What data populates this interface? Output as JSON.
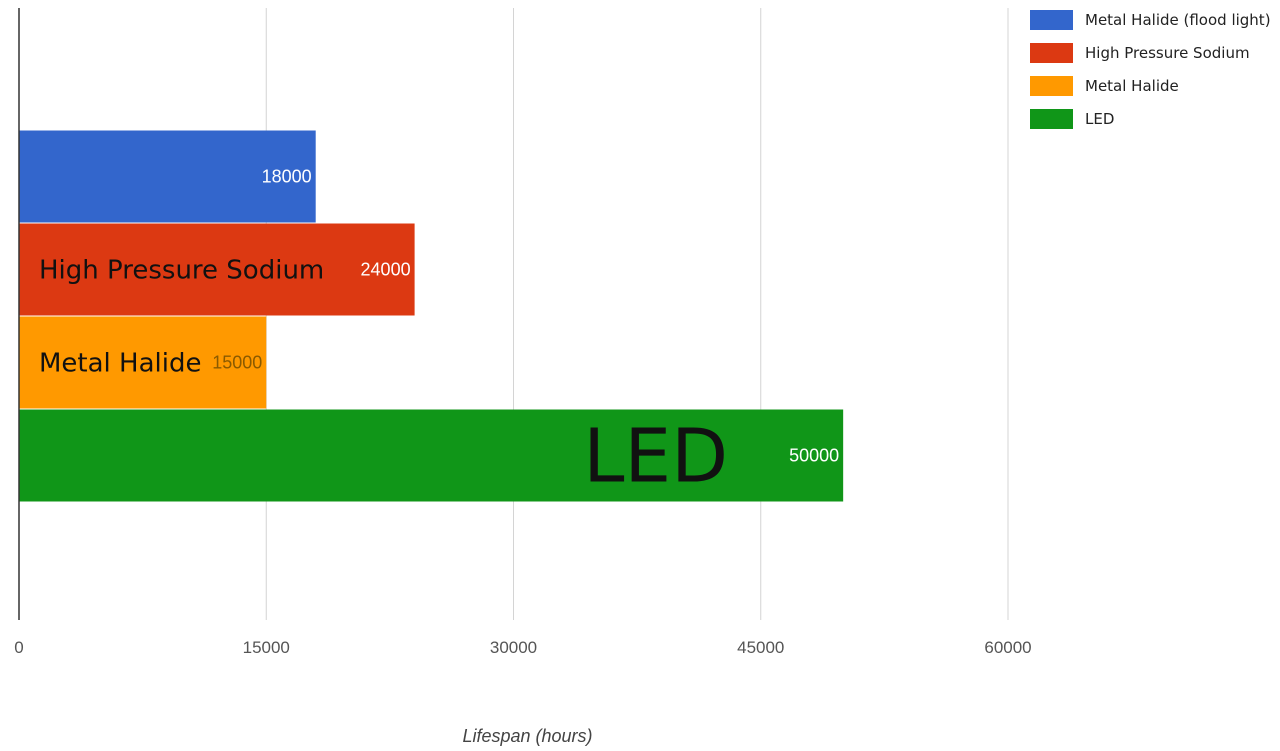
{
  "chart_data": {
    "type": "bar",
    "orientation": "horizontal",
    "categories": [
      "Metal Halide (flood light)",
      "High Pressure Sodium",
      "Metal Halide",
      "LED"
    ],
    "values": [
      18000,
      24000,
      15000,
      50000
    ],
    "colors": [
      "#3366cc",
      "#dc3912",
      "#ff9900",
      "#109618"
    ],
    "bar_value_labels": [
      "18000",
      "24000",
      "15000",
      "50000"
    ],
    "bar_overlay_labels": [
      "",
      "High Pressure Sodium",
      "Metal Halide",
      "LED"
    ],
    "xlabel": "Lifespan (hours)",
    "ylabel": "",
    "xlim": [
      0,
      60000
    ],
    "xticks": [
      0,
      15000,
      30000,
      45000,
      60000
    ],
    "xtick_labels": [
      "0",
      "15000",
      "30000",
      "45000",
      "60000"
    ],
    "grid": true,
    "legend": {
      "position": "top-right",
      "entries": [
        "Metal Halide (flood light)",
        "High Pressure Sodium",
        "Metal Halide",
        "LED"
      ]
    }
  }
}
